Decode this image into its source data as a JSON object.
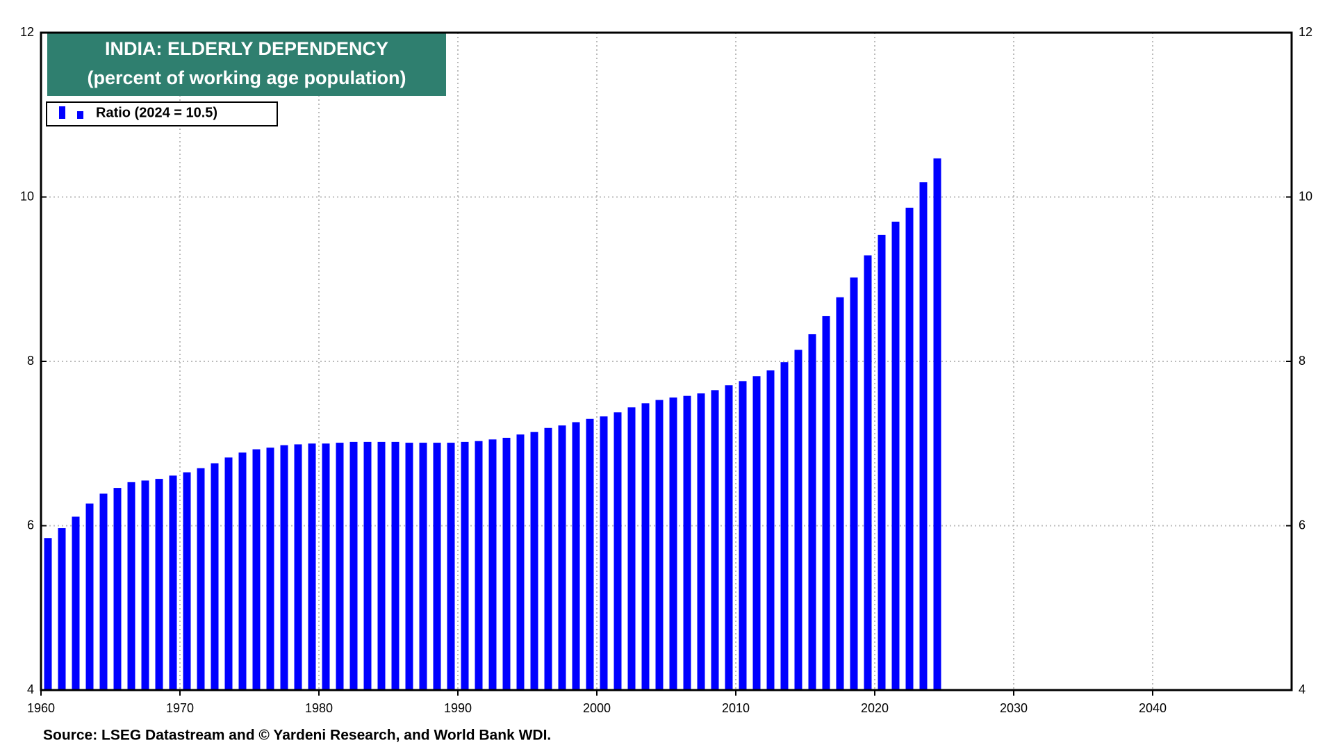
{
  "chart_data": {
    "type": "bar",
    "title": "INDIA: ELDERLY DEPENDENCY",
    "subtitle": "(percent of working age population)",
    "legend_label": "Ratio  (2024 = 10.5)",
    "source": "Source: LSEG Datastream and © Yardeni Research, and World Bank WDI.",
    "x": [
      1960,
      1961,
      1962,
      1963,
      1964,
      1965,
      1966,
      1967,
      1968,
      1969,
      1970,
      1971,
      1972,
      1973,
      1974,
      1975,
      1976,
      1977,
      1978,
      1979,
      1980,
      1981,
      1982,
      1983,
      1984,
      1985,
      1986,
      1987,
      1988,
      1989,
      1990,
      1991,
      1992,
      1993,
      1994,
      1995,
      1996,
      1997,
      1998,
      1999,
      2000,
      2001,
      2002,
      2003,
      2004,
      2005,
      2006,
      2007,
      2008,
      2009,
      2010,
      2011,
      2012,
      2013,
      2014,
      2015,
      2016,
      2017,
      2018,
      2019,
      2020,
      2021,
      2022,
      2023,
      2024
    ],
    "series": [
      {
        "name": "Ratio",
        "color": "#0000ff",
        "values": [
          5.85,
          5.97,
          6.11,
          6.27,
          6.39,
          6.46,
          6.53,
          6.55,
          6.57,
          6.61,
          6.65,
          6.7,
          6.76,
          6.83,
          6.89,
          6.93,
          6.95,
          6.98,
          6.99,
          7.0,
          7.0,
          7.01,
          7.02,
          7.02,
          7.02,
          7.02,
          7.01,
          7.01,
          7.01,
          7.01,
          7.02,
          7.03,
          7.05,
          7.07,
          7.11,
          7.14,
          7.19,
          7.22,
          7.26,
          7.3,
          7.33,
          7.38,
          7.44,
          7.49,
          7.53,
          7.56,
          7.58,
          7.61,
          7.65,
          7.71,
          7.76,
          7.82,
          7.89,
          7.99,
          8.14,
          8.33,
          8.55,
          8.78,
          9.02,
          9.29,
          9.54,
          9.7,
          9.87,
          10.18,
          10.47
        ]
      }
    ],
    "xlim": [
      1960,
      2050
    ],
    "xticks": [
      1960,
      1970,
      1980,
      1990,
      2000,
      2010,
      2020,
      2030,
      2040
    ],
    "ylim": [
      4,
      12
    ],
    "yticks": [
      4,
      6,
      8,
      10,
      12
    ],
    "y2lim": [
      4,
      12
    ],
    "y2ticks": [
      4,
      6,
      8,
      10,
      12
    ],
    "grid": true,
    "title_box_color": "#2f7f6f"
  }
}
